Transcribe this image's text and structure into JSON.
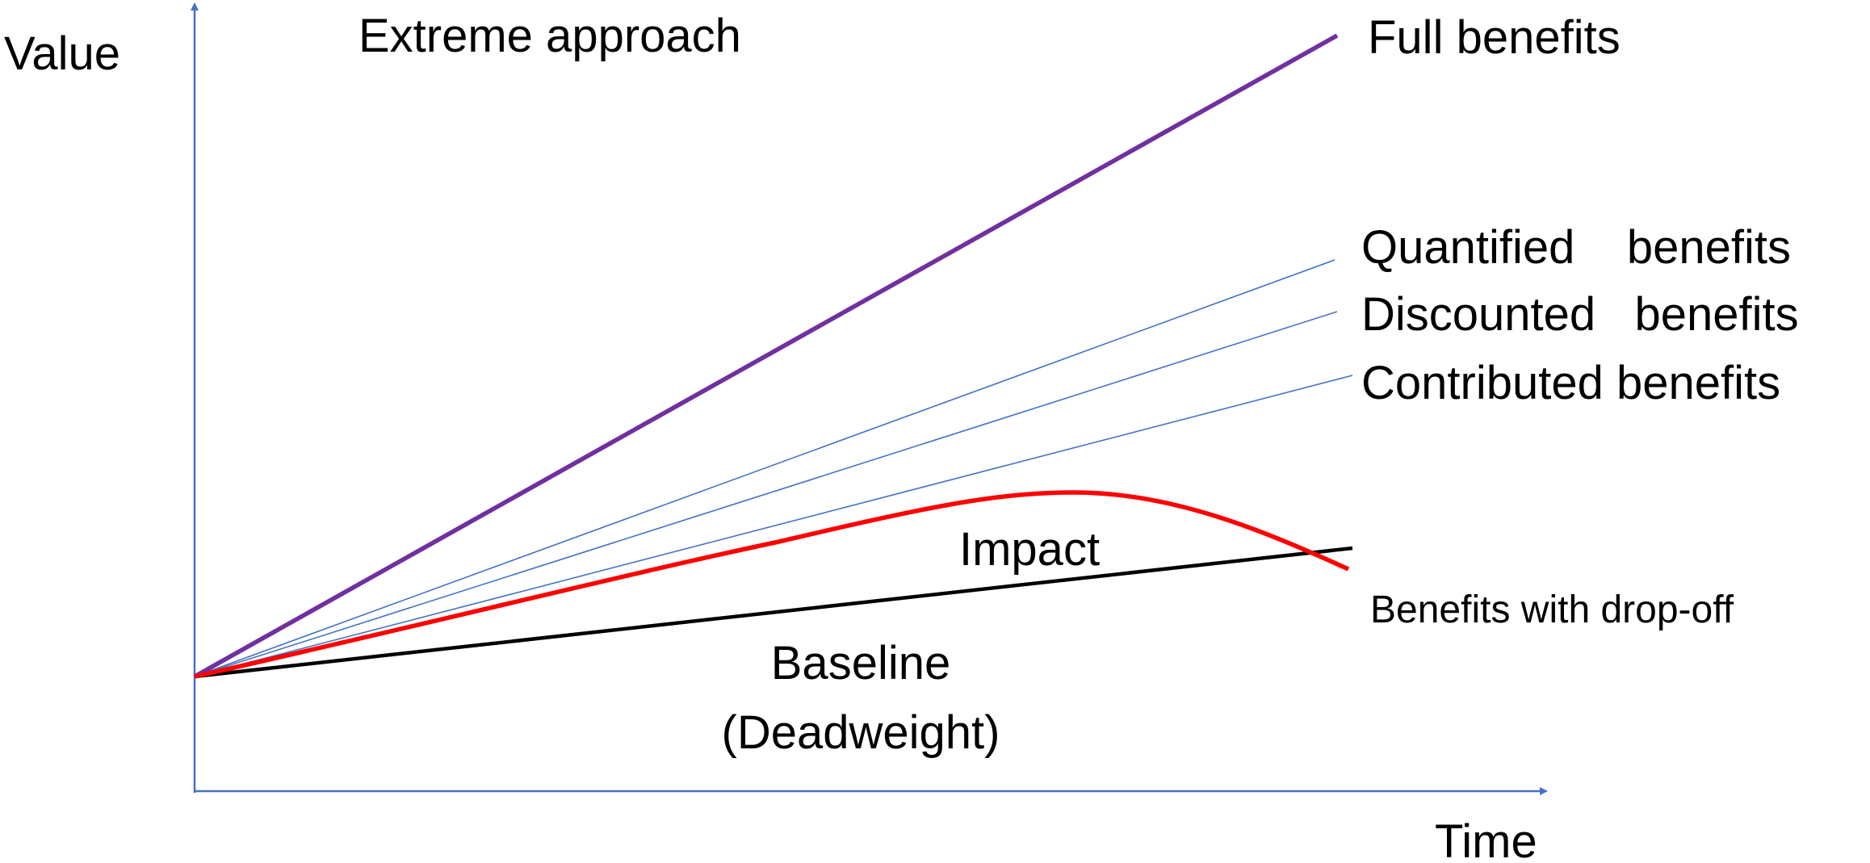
{
  "diagram": {
    "axis_y_label": "Value",
    "axis_x_label": "Time",
    "title": "Extreme approach",
    "lines": {
      "full_benefits": {
        "label": "Full benefits",
        "color": "#7030a0"
      },
      "quantified_benefits": {
        "label": "Quantified    benefits",
        "color": "#4472c4"
      },
      "discounted_benefits": {
        "label": "Discounted   benefits",
        "color": "#4472c4"
      },
      "contributed_benefits": {
        "label": "Contributed benefits",
        "color": "#4472c4"
      },
      "benefits_with_dropoff": {
        "label": "Benefits with drop-off",
        "color": "#ff0000"
      },
      "baseline": {
        "label_line1": "Baseline",
        "label_line2": "(Deadweight)",
        "color": "#000000"
      }
    },
    "region_label_impact": "Impact",
    "axis_color": "#4472c4"
  }
}
